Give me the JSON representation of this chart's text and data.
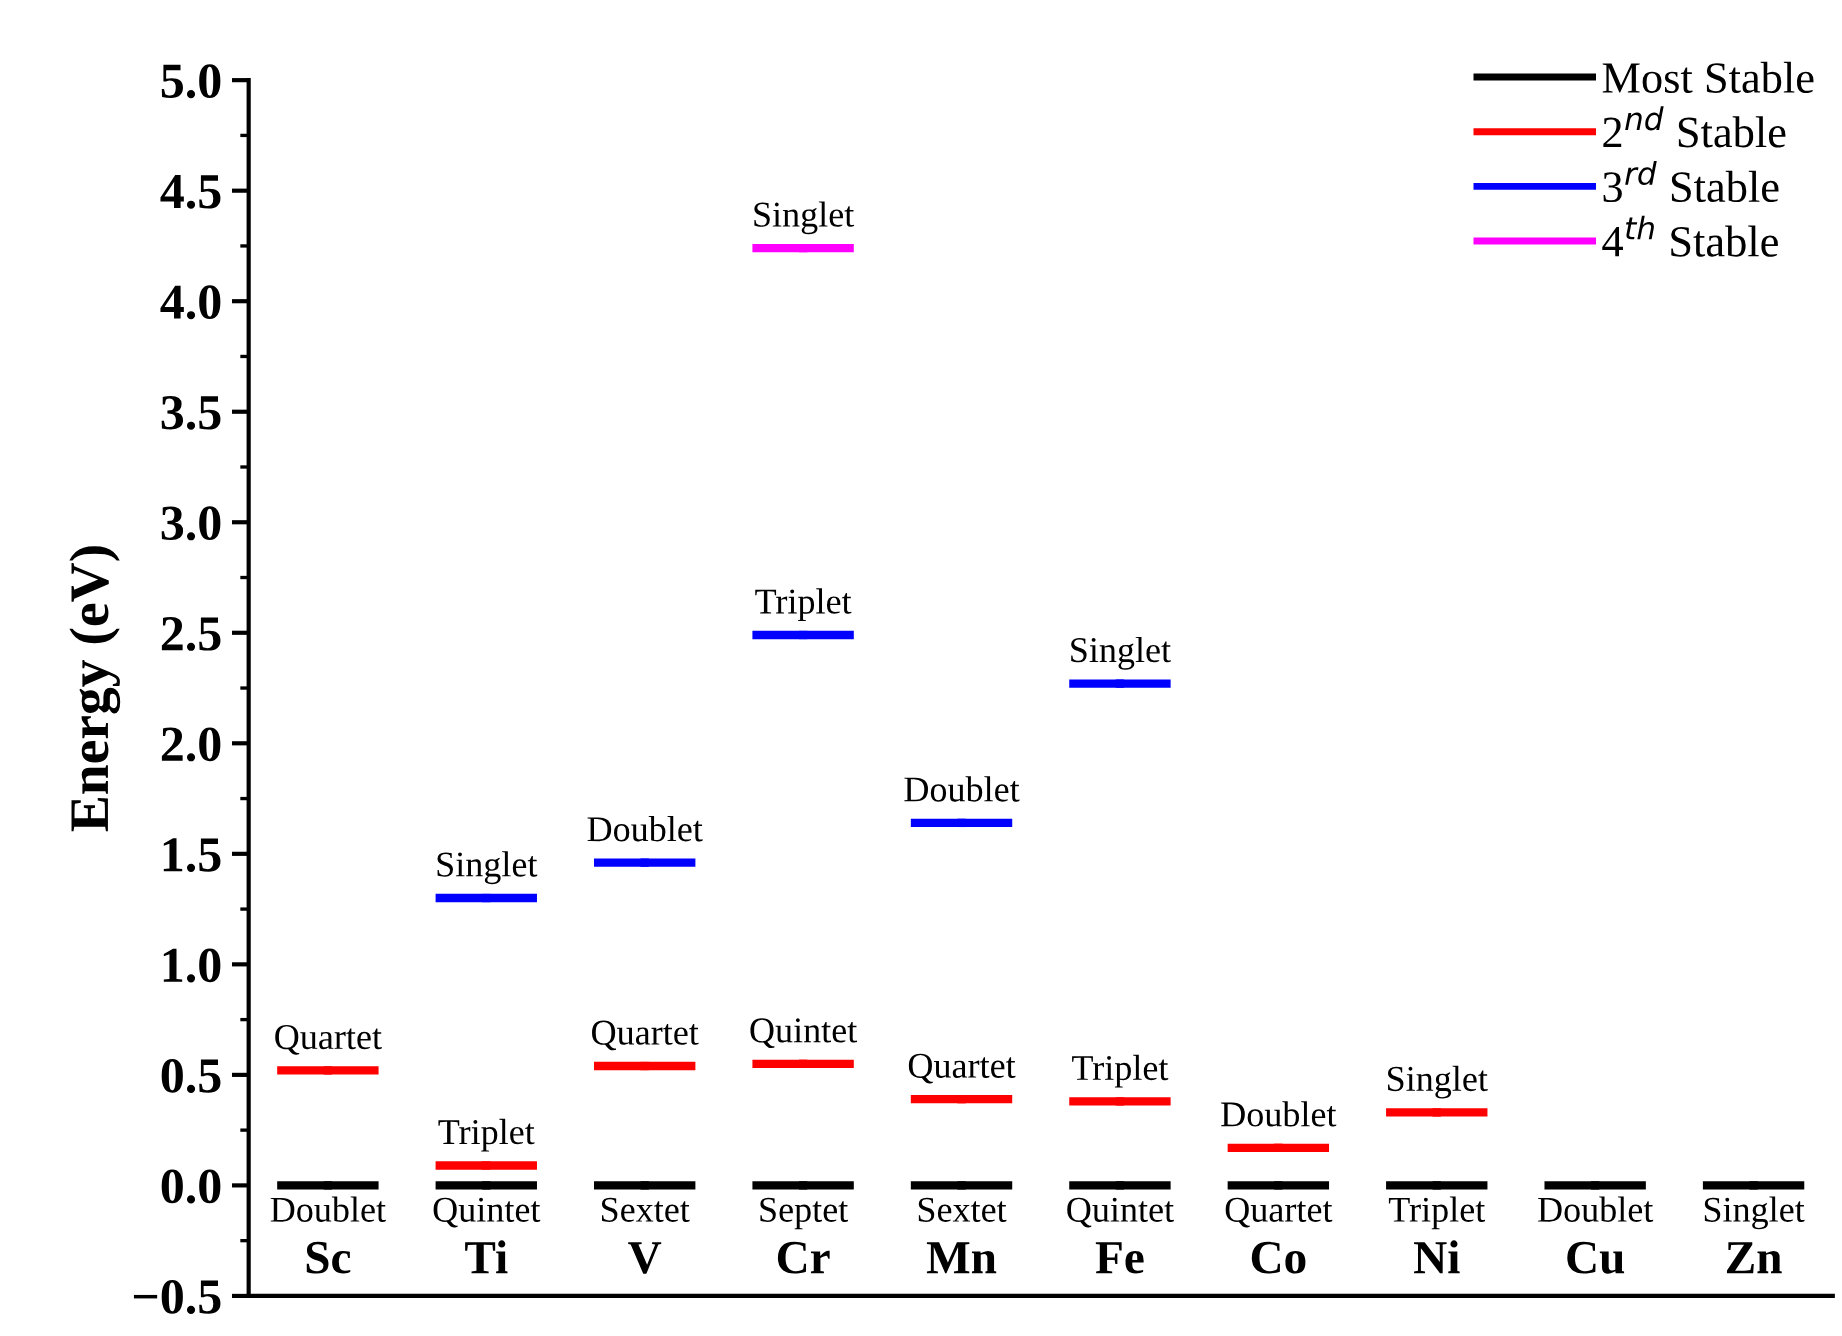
{
  "chart_data": {
    "type": "scatter",
    "ylabel": "Energy (eV)",
    "categories": [
      "Sc",
      "Ti",
      "V",
      "Cr",
      "Mn",
      "Fe",
      "Co",
      "Ni",
      "Cu",
      "Zn"
    ],
    "series": [
      {
        "name": "Most Stable",
        "color": "#000000",
        "values": [
          0,
          0,
          0,
          0,
          0,
          0,
          0,
          0,
          0,
          0
        ],
        "value_labels": [
          "Doublet",
          "Quintet",
          "Sextet",
          "Septet",
          "Sextet",
          "Quintet",
          "Quartet",
          "Triplet",
          "Doublet",
          "Singlet"
        ]
      },
      {
        "name": "2$^{nd}$ Stable",
        "color": "#ff0000",
        "values": [
          0.52,
          0.09,
          0.54,
          0.55,
          0.39,
          0.38,
          0.17,
          0.33,
          null,
          null
        ],
        "value_labels": [
          "Quartet",
          "Triplet",
          "Quartet",
          "Quintet",
          "Quartet",
          "Triplet",
          "Doublet",
          "Singlet",
          null,
          null
        ]
      },
      {
        "name": "3$^{rd}$ Stable",
        "color": "#0000ff",
        "values": [
          null,
          1.3,
          1.46,
          2.49,
          1.64,
          2.27,
          null,
          null,
          null,
          null
        ],
        "value_labels": [
          null,
          "Singlet",
          "Doublet",
          "Triplet",
          "Doublet",
          "Singlet",
          null,
          null,
          null,
          null
        ]
      },
      {
        "name": "4$^{th}$ Stable",
        "color": "#ff00ff",
        "values": [
          null,
          null,
          null,
          4.24,
          null,
          null,
          null,
          null,
          null,
          null
        ],
        "value_labels": [
          null,
          null,
          null,
          "Singlet",
          null,
          null,
          null,
          null,
          null,
          null
        ]
      }
    ],
    "ylim": [
      -0.5,
      5.0
    ],
    "yticks": [
      {
        "value": -0.5,
        "label": "−0.5"
      },
      {
        "value": 0,
        "label": "0.0"
      },
      0.5,
      {
        "value": 1,
        "label": "1.0"
      },
      1.5,
      {
        "value": 2,
        "label": "2.0"
      },
      2.5,
      {
        "value": 3,
        "label": "3.0"
      },
      3.5,
      {
        "value": 4,
        "label": "4.0"
      },
      4.5,
      {
        "value": 5,
        "label": "5.0"
      }
    ],
    "grid": false,
    "legend": "top right",
    "marker": "square"
  }
}
